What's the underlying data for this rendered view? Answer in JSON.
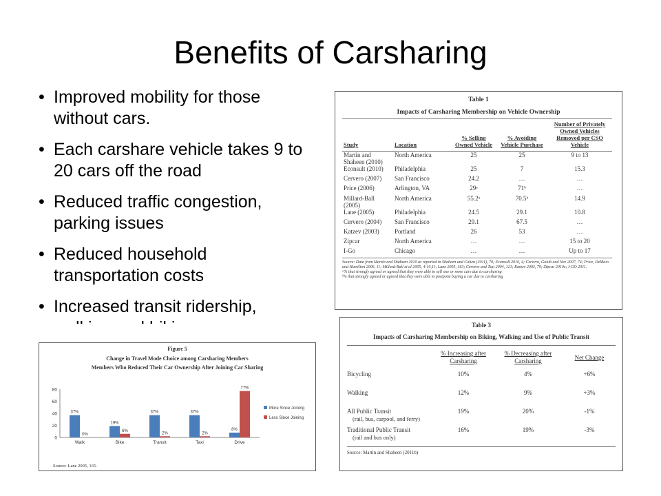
{
  "slide": {
    "title": "Benefits of Carsharing",
    "bullets": [
      "Improved mobility for those without cars.",
      "Each carshare vehicle takes 9 to 20 cars off the road",
      "Reduced traffic congestion, parking issues",
      "Reduced household transportation costs",
      "Increased transit ridership, walking and biking"
    ]
  },
  "table1": {
    "caption": "Table 1",
    "title": "Impacts of Carsharing Membership on Vehicle Ownership",
    "headers": [
      "Study",
      "Location",
      "% Selling Owned Vehicle",
      "% Avoiding Vehicle Purchase",
      "Number of Privately Owned Vehicles Removed per CSO Vehicle"
    ],
    "rows": [
      [
        "Martin and Shaheen (2010)",
        "North America",
        "25",
        "25",
        "9 to 13"
      ],
      [
        "Econsult (2010)",
        "Philadelphia",
        "25",
        "7",
        "15.3"
      ],
      [
        "Cervero (2007)",
        "San Francisco",
        "24.2",
        "…",
        "…"
      ],
      [
        "Price (2006)",
        "Arlington, VA",
        "29ᵃ",
        "71ᵇ",
        "…"
      ],
      [
        "Millard-Ball (2005)",
        "North America",
        "55.2ᵃ",
        "70.5ᵇ",
        "14.9"
      ],
      [
        "Lane (2005)",
        "Philadelphia",
        "24.5",
        "29.1",
        "10.8"
      ],
      [
        "Cervero (2004)",
        "San Francisco",
        "29.1",
        "67.5",
        "…"
      ],
      [
        "Katzev (2003)",
        "Portland",
        "26",
        "53",
        "…"
      ],
      [
        "Zipcar",
        "North America",
        "…",
        "…",
        "15 to 20"
      ],
      [
        "I-Go",
        "Chicago",
        "…",
        "…",
        "Up to 17"
      ]
    ],
    "notes": [
      "Source: Data from Martin and Shaheen 2010 as reported in Shaheen and Cohen (2011), 70; Econsult 2010, 4; Cervero, Golub and Nee 2007, 74; Price, DeMaio and Hamilton 2006, 11; Millard-Ball et al 2005, 4-10,11; Lane 2005, 163; Cervero and Tsai 2004, 121; Katzev 2003, 79; Zipcar 2010c; I-GO 2011.",
      "ᵃ% that strongly agreed or agreed that they were able to sell one or more cars due to carsharing",
      "ᵇ% that strongly agreed or agreed that they were able to postpone buying a car due to carsharing"
    ]
  },
  "table3": {
    "caption": "Table 3",
    "title": "Impacts of Carsharing Membership on Biking, Walking and Use of Public Transit",
    "headers": [
      "",
      "% Increasing after Carsharing",
      "% Decreasing after Carsharing",
      "Net Change"
    ],
    "rows": [
      {
        "label": "Bicycling",
        "sub": "",
        "inc": "10%",
        "dec": "4%",
        "net": "+6%"
      },
      {
        "label": "Walking",
        "sub": "",
        "inc": "12%",
        "dec": "9%",
        "net": "+3%"
      },
      {
        "label": "All Public Transit",
        "sub": "(rail, bus, carpool, and ferry)",
        "inc": "19%",
        "dec": "20%",
        "net": "-1%"
      },
      {
        "label": "Traditional Public Transit",
        "sub": "(rail and bus only)",
        "inc": "16%",
        "dec": "19%",
        "net": "-3%"
      }
    ],
    "source": "Source: Martin and Shaheen (2011b)"
  },
  "figure": {
    "caption": "Figure 5",
    "title": "Change in Travel Mode Choice among Carsharing Members",
    "subtitle": "Members Who Reduced Their Car Ownership After Joining Car Sharing",
    "source": "Source: Lane 2005, 165."
  },
  "chart_data": {
    "type": "bar",
    "categories": [
      "Walk",
      "Bike",
      "Transit",
      "Taxi",
      "Drive"
    ],
    "series": [
      {
        "name": "More Since Joining",
        "color": "#4a7ebb",
        "values": [
          37,
          19,
          37,
          37,
          8
        ],
        "labels": [
          "37%",
          "19%",
          "37%",
          "37%",
          "8%"
        ]
      },
      {
        "name": "Less Since Joining",
        "color": "#c0504d",
        "values": [
          0,
          6,
          2,
          2,
          77
        ],
        "labels": [
          "0%",
          "6%",
          "2%",
          "2%",
          "77%"
        ]
      }
    ],
    "ylim": [
      0,
      80
    ],
    "yticks": [
      "0",
      "20",
      "40",
      "60",
      "80"
    ],
    "legend": "right",
    "grid": false
  }
}
